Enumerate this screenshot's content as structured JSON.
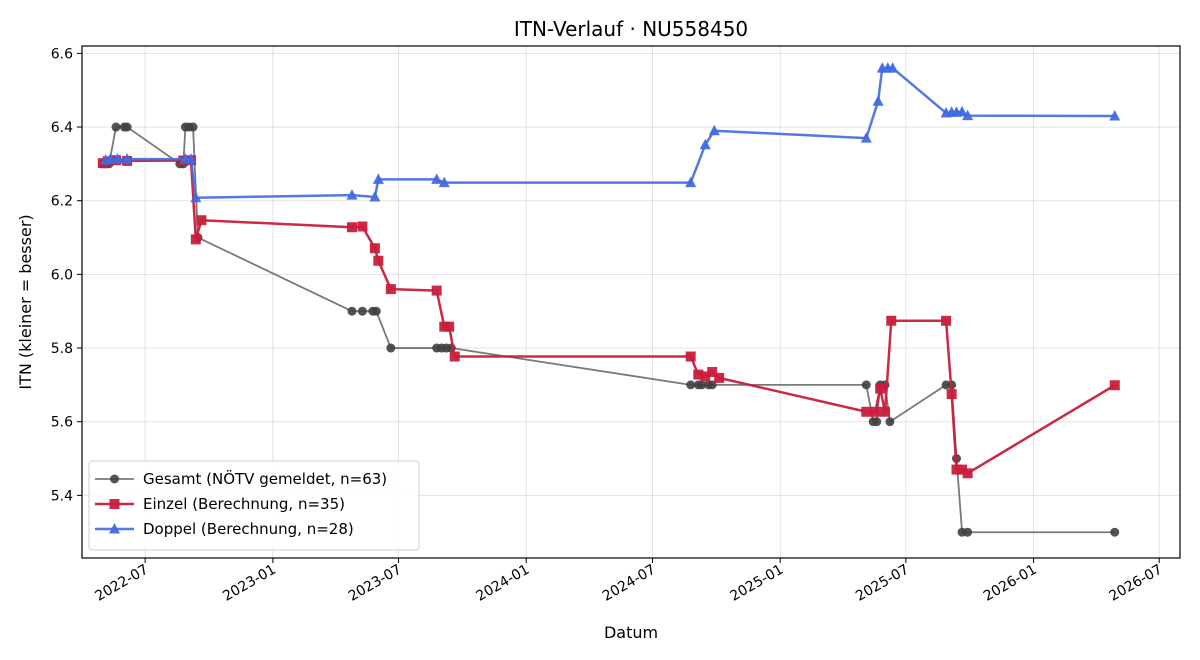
{
  "chart_data": {
    "type": "line",
    "title": "ITN-Verlauf · NU558450",
    "xlabel": "Datum",
    "ylabel": "ITN  (kleiner = besser)",
    "xlim": [
      "2022-04-01",
      "2026-07-31"
    ],
    "ylim": [
      5.23,
      6.62
    ],
    "grid": true,
    "legend_position": "lower-left",
    "x_ticks": [
      "2022-07-01",
      "2023-01-01",
      "2023-07-01",
      "2024-01-01",
      "2024-07-01",
      "2025-01-01",
      "2025-07-01",
      "2026-01-01",
      "2026-07-01"
    ],
    "x_tick_labels": [
      "2022-07",
      "2023-01",
      "2023-07",
      "2024-01",
      "2024-07",
      "2025-01",
      "2025-07",
      "2026-01",
      "2026-07"
    ],
    "y_ticks": [
      5.4,
      5.6,
      5.8,
      6.0,
      6.2,
      6.4,
      6.6
    ],
    "y_tick_labels": [
      "5.4",
      "5.6",
      "5.8",
      "6.0",
      "6.2",
      "6.4",
      "6.6"
    ],
    "series": [
      {
        "name": "Gesamt (NÖTV gemeldet, n=63)",
        "color": "#404040",
        "marker": "circle",
        "points": [
          [
            "2022-05-01",
            6.3
          ],
          [
            "2022-05-05",
            6.3
          ],
          [
            "2022-05-10",
            6.3
          ],
          [
            "2022-05-20",
            6.4
          ],
          [
            "2022-06-01",
            6.4
          ],
          [
            "2022-06-05",
            6.4
          ],
          [
            "2022-08-20",
            6.3
          ],
          [
            "2022-08-25",
            6.3
          ],
          [
            "2022-08-28",
            6.4
          ],
          [
            "2022-09-02",
            6.4
          ],
          [
            "2022-09-08",
            6.4
          ],
          [
            "2022-09-15",
            6.1
          ],
          [
            "2023-04-25",
            5.9
          ],
          [
            "2023-05-10",
            5.9
          ],
          [
            "2023-05-25",
            5.9
          ],
          [
            "2023-05-30",
            5.9
          ],
          [
            "2023-06-20",
            5.8
          ],
          [
            "2023-08-25",
            5.8
          ],
          [
            "2023-09-01",
            5.8
          ],
          [
            "2023-09-08",
            5.8
          ],
          [
            "2023-09-15",
            5.8
          ],
          [
            "2024-08-25",
            5.7
          ],
          [
            "2024-09-05",
            5.7
          ],
          [
            "2024-09-10",
            5.7
          ],
          [
            "2024-09-20",
            5.7
          ],
          [
            "2024-09-25",
            5.7
          ],
          [
            "2025-05-05",
            5.7
          ],
          [
            "2025-05-15",
            5.6
          ],
          [
            "2025-05-20",
            5.6
          ],
          [
            "2025-05-25",
            5.7
          ],
          [
            "2025-06-01",
            5.7
          ],
          [
            "2025-06-08",
            5.6
          ],
          [
            "2025-08-28",
            5.7
          ],
          [
            "2025-09-05",
            5.7
          ],
          [
            "2025-09-12",
            5.5
          ],
          [
            "2025-09-20",
            5.3
          ],
          [
            "2025-09-28",
            5.3
          ],
          [
            "2026-04-28",
            5.3
          ]
        ]
      },
      {
        "name": "Einzel (Berechnung, n=35)",
        "color": "#c81e3c",
        "marker": "square",
        "points": [
          [
            "2022-05-01",
            6.302
          ],
          [
            "2022-05-08",
            6.307
          ],
          [
            "2022-05-20",
            6.31
          ],
          [
            "2022-06-05",
            6.308
          ],
          [
            "2022-08-25",
            6.309
          ],
          [
            "2022-09-05",
            6.31
          ],
          [
            "2022-09-12",
            6.095
          ],
          [
            "2022-09-20",
            6.147
          ],
          [
            "2023-04-25",
            6.128
          ],
          [
            "2023-05-10",
            6.13
          ],
          [
            "2023-05-28",
            6.071
          ],
          [
            "2023-06-02",
            6.037
          ],
          [
            "2023-06-20",
            5.96
          ],
          [
            "2023-08-25",
            5.956
          ],
          [
            "2023-09-05",
            5.858
          ],
          [
            "2023-09-12",
            5.858
          ],
          [
            "2023-09-20",
            5.777
          ],
          [
            "2024-08-25",
            5.777
          ],
          [
            "2024-09-05",
            5.728
          ],
          [
            "2024-09-15",
            5.723
          ],
          [
            "2024-09-25",
            5.735
          ],
          [
            "2024-10-05",
            5.719
          ],
          [
            "2025-05-05",
            5.627
          ],
          [
            "2025-05-18",
            5.627
          ],
          [
            "2025-05-25",
            5.69
          ],
          [
            "2025-06-01",
            5.627
          ],
          [
            "2025-06-10",
            5.874
          ],
          [
            "2025-08-28",
            5.874
          ],
          [
            "2025-09-05",
            5.675
          ],
          [
            "2025-09-12",
            5.47
          ],
          [
            "2025-09-20",
            5.47
          ],
          [
            "2025-09-28",
            5.46
          ],
          [
            "2026-04-28",
            5.699
          ]
        ]
      },
      {
        "name": "Doppel (Berechnung, n=28)",
        "color": "#4169e1",
        "marker": "triangle",
        "points": [
          [
            "2022-05-05",
            6.31
          ],
          [
            "2022-05-12",
            6.313
          ],
          [
            "2022-05-22",
            6.313
          ],
          [
            "2022-06-05",
            6.313
          ],
          [
            "2022-08-28",
            6.313
          ],
          [
            "2022-09-05",
            6.313
          ],
          [
            "2022-09-12",
            6.208
          ],
          [
            "2023-04-25",
            6.215
          ],
          [
            "2023-05-28",
            6.21
          ],
          [
            "2023-06-02",
            6.258
          ],
          [
            "2023-08-25",
            6.258
          ],
          [
            "2023-09-05",
            6.249
          ],
          [
            "2024-08-25",
            6.249
          ],
          [
            "2024-09-15",
            6.352
          ],
          [
            "2024-09-28",
            6.39
          ],
          [
            "2025-05-05",
            6.37
          ],
          [
            "2025-05-22",
            6.47
          ],
          [
            "2025-05-28",
            6.56
          ],
          [
            "2025-06-05",
            6.56
          ],
          [
            "2025-06-12",
            6.56
          ],
          [
            "2025-08-28",
            6.438
          ],
          [
            "2025-09-05",
            6.44
          ],
          [
            "2025-09-12",
            6.44
          ],
          [
            "2025-09-20",
            6.441
          ],
          [
            "2025-09-28",
            6.431
          ],
          [
            "2026-04-28",
            6.43
          ]
        ]
      }
    ]
  }
}
